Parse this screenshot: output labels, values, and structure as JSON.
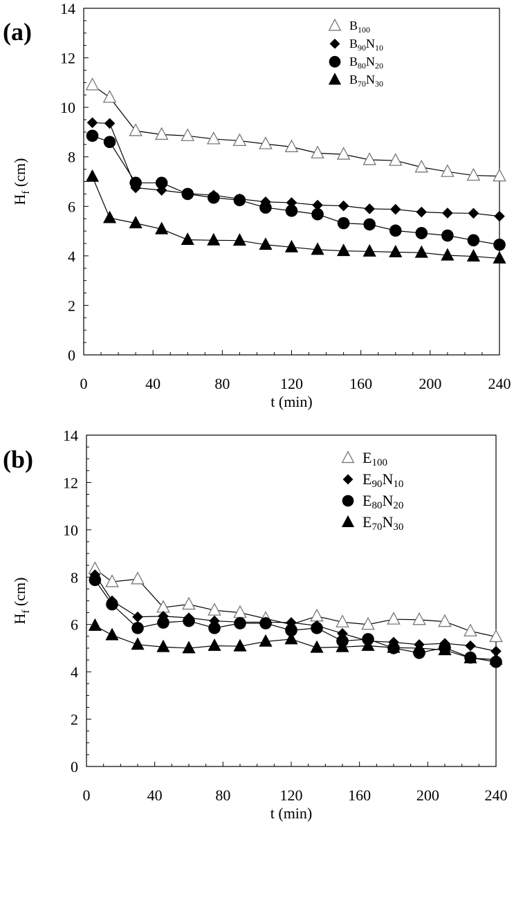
{
  "chart_data": [
    {
      "type": "line",
      "panel_label": "(a)",
      "xlabel": "t (min)",
      "ylabel": "H<sub>f</sub> (cm)",
      "ylabel_main": "H",
      "ylabel_sub": "f",
      "ylabel_rest": " (cm)",
      "xlim": [
        0,
        240
      ],
      "ylim": [
        0,
        14
      ],
      "x_ticks": [
        0,
        40,
        80,
        120,
        160,
        200,
        240
      ],
      "y_ticks": [
        0,
        2,
        4,
        6,
        8,
        10,
        12,
        14
      ],
      "grid": false,
      "legend_position": "top-right",
      "x": [
        5,
        15,
        30,
        45,
        60,
        75,
        90,
        105,
        120,
        135,
        150,
        165,
        180,
        195,
        210,
        225,
        240
      ],
      "series": [
        {
          "name": "B100",
          "legend_main": "B",
          "legend_sub1": "100",
          "legend_mid": "",
          "legend_sub2": "",
          "marker": "triangle-open",
          "values": [
            10.9,
            10.4,
            9.05,
            8.9,
            8.85,
            8.72,
            8.65,
            8.52,
            8.4,
            8.15,
            8.1,
            7.88,
            7.85,
            7.58,
            7.4,
            7.25,
            7.22
          ]
        },
        {
          "name": "B90N10",
          "legend_main": "B",
          "legend_sub1": "90",
          "legend_mid": "N",
          "legend_sub2": "10",
          "marker": "diamond",
          "values": [
            9.38,
            9.35,
            6.75,
            6.65,
            6.52,
            6.45,
            6.3,
            6.18,
            6.15,
            6.05,
            6.02,
            5.9,
            5.88,
            5.77,
            5.73,
            5.72,
            5.6
          ]
        },
        {
          "name": "B80N20",
          "legend_main": "B",
          "legend_sub1": "80",
          "legend_mid": "N",
          "legend_sub2": "20",
          "marker": "circle",
          "values": [
            8.85,
            8.6,
            6.95,
            6.95,
            6.5,
            6.35,
            6.25,
            5.95,
            5.82,
            5.68,
            5.32,
            5.27,
            5.02,
            4.92,
            4.82,
            4.63,
            4.45
          ]
        },
        {
          "name": "B70N30",
          "legend_main": "B",
          "legend_sub1": "70",
          "legend_mid": "N",
          "legend_sub2": "30",
          "marker": "triangle",
          "values": [
            7.2,
            5.53,
            5.32,
            5.08,
            4.65,
            4.63,
            4.62,
            4.45,
            4.35,
            4.25,
            4.2,
            4.18,
            4.15,
            4.13,
            4.02,
            3.98,
            3.9
          ]
        }
      ]
    },
    {
      "type": "line",
      "panel_label": "(b)",
      "xlabel": "t (min)",
      "ylabel_main": "H",
      "ylabel_sub": "f",
      "ylabel_rest": " (cm)",
      "xlim": [
        0,
        240
      ],
      "ylim": [
        0,
        14
      ],
      "x_ticks": [
        0,
        40,
        80,
        120,
        160,
        200,
        240
      ],
      "y_ticks": [
        0,
        2,
        4,
        6,
        8,
        10,
        12,
        14
      ],
      "grid": false,
      "legend_position": "top-right",
      "x": [
        5,
        15,
        30,
        45,
        60,
        75,
        90,
        105,
        120,
        135,
        150,
        165,
        180,
        195,
        210,
        225,
        240
      ],
      "series": [
        {
          "name": "E100",
          "legend_main": "E",
          "legend_sub1": "100",
          "legend_mid": "",
          "legend_sub2": "",
          "marker": "triangle-open",
          "values": [
            8.35,
            7.8,
            7.92,
            6.72,
            6.85,
            6.6,
            6.5,
            6.25,
            6.0,
            6.35,
            6.1,
            6.0,
            6.22,
            6.2,
            6.12,
            5.72,
            5.48
          ]
        },
        {
          "name": "E90N10",
          "legend_main": "E",
          "legend_sub1": "90",
          "legend_mid": "N",
          "legend_sub2": "10",
          "marker": "diamond",
          "values": [
            8.1,
            7.0,
            6.32,
            6.35,
            6.28,
            6.15,
            6.1,
            6.1,
            6.08,
            5.95,
            5.62,
            5.3,
            5.25,
            5.15,
            5.2,
            5.1,
            4.87
          ]
        },
        {
          "name": "E80N20",
          "legend_main": "E",
          "legend_sub1": "80",
          "legend_mid": "N",
          "legend_sub2": "20",
          "marker": "circle",
          "values": [
            7.88,
            6.85,
            5.85,
            6.08,
            6.15,
            5.85,
            6.05,
            6.05,
            5.75,
            5.85,
            5.3,
            5.38,
            5.0,
            4.8,
            5.02,
            4.6,
            4.42
          ]
        },
        {
          "name": "E70N30",
          "legend_main": "E",
          "legend_sub1": "70",
          "legend_mid": "N",
          "legend_sub2": "30",
          "marker": "triangle",
          "values": [
            5.95,
            5.55,
            5.15,
            5.05,
            5.0,
            5.1,
            5.08,
            5.28,
            5.38,
            5.02,
            5.05,
            5.1,
            5.02,
            5.0,
            4.92,
            4.58,
            4.52
          ]
        }
      ]
    }
  ]
}
